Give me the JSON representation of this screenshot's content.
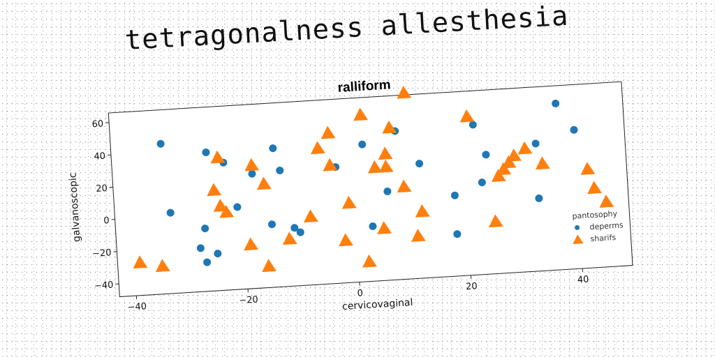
{
  "banner": "tetragonalness allesthesia",
  "chart_data": {
    "type": "scatter",
    "title": "ralliform",
    "xlabel": "cervicovaginal",
    "ylabel": "galvanoscopic",
    "xlim": [
      -43,
      49
    ],
    "ylim": [
      -48,
      66
    ],
    "xticks": [
      -40,
      -20,
      0,
      20,
      40
    ],
    "yticks": [
      -40,
      -20,
      0,
      20,
      40,
      60
    ],
    "grid": false,
    "legend": {
      "title": "pantosophy",
      "position": "lower-right"
    },
    "series": [
      {
        "name": "deperms",
        "marker": "circle",
        "color": "#1f77b4",
        "x": [
          -34,
          -33,
          -26,
          -23,
          -21,
          -27,
          -28,
          -27,
          -25,
          -18,
          -14,
          -13,
          -15,
          -11,
          -10,
          -6,
          -3,
          2,
          3,
          6,
          8,
          12,
          18,
          18,
          22,
          24,
          23,
          33,
          33,
          37,
          40
        ],
        "y": [
          45,
          2,
          38,
          31,
          3,
          -9,
          -21,
          -30,
          -25,
          23,
          38,
          24,
          -9,
          -12,
          -15,
          36,
          24,
          37,
          -14,
          7,
          44,
          23,
          2,
          -22,
          45,
          26,
          9,
          31,
          -3,
          55,
          38
        ]
      },
      {
        "name": "sharifs",
        "marker": "triangle",
        "color": "#ff7f0e",
        "x": [
          -39,
          -35,
          -24,
          -25,
          -24,
          -23,
          -18,
          -16,
          -19,
          -16,
          -12,
          -8,
          -6,
          -4,
          -4,
          -1,
          -2,
          2,
          2,
          4,
          5,
          6,
          6,
          7,
          10,
          9,
          11,
          12,
          21,
          25,
          26,
          27,
          28,
          29,
          31,
          34,
          42,
          43,
          45
        ],
        "y": [
          -28,
          -31,
          34,
          14,
          4,
          0,
          28,
          16,
          -21,
          -35,
          -19,
          -6,
          36,
          45,
          25,
          1,
          -22,
          55,
          -36,
          22,
          -16,
          22,
          30,
          46,
          67,
          9,
          -22,
          -7,
          50,
          -16,
          12,
          16,
          20,
          24,
          28,
          18,
          13,
          1,
          -8
        ]
      }
    ]
  }
}
